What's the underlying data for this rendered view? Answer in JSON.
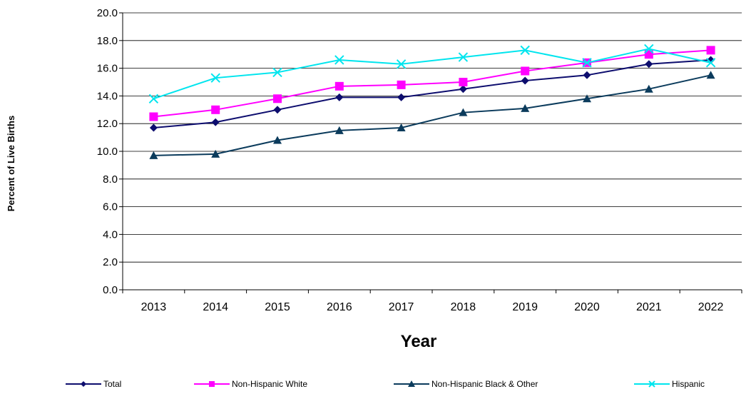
{
  "chart_data": {
    "type": "line",
    "title": "",
    "xlabel": "Year",
    "ylabel": "Percent of Live Births",
    "ylim": [
      0,
      20
    ],
    "y_ticks": [
      "0.0",
      "2.0",
      "4.0",
      "6.0",
      "8.0",
      "10.0",
      "12.0",
      "14.0",
      "16.0",
      "18.0",
      "20.0"
    ],
    "grid": "horizontal",
    "legend_position": "bottom",
    "categories": [
      "2013",
      "2014",
      "2015",
      "2016",
      "2017",
      "2018",
      "2019",
      "2020",
      "2021",
      "2022"
    ],
    "series": [
      {
        "name": "Total",
        "color": "#0d0d6e",
        "marker": "diamond",
        "values": [
          11.7,
          12.1,
          13.0,
          13.9,
          13.9,
          14.5,
          15.1,
          15.5,
          16.3,
          16.6
        ]
      },
      {
        "name": "Non-Hispanic White",
        "color": "#ff00ff",
        "marker": "square",
        "values": [
          12.5,
          13.0,
          13.8,
          14.7,
          14.8,
          15.0,
          15.8,
          16.4,
          17.0,
          17.3
        ]
      },
      {
        "name": "Non-Hispanic Black & Other",
        "color": "#0b3b5c",
        "marker": "triangle",
        "values": [
          9.7,
          9.8,
          10.8,
          11.5,
          11.7,
          12.8,
          13.1,
          13.8,
          14.5,
          15.5
        ]
      },
      {
        "name": "Hispanic",
        "color": "#00e5ee",
        "marker": "x",
        "values": [
          13.8,
          15.3,
          15.7,
          16.6,
          16.3,
          16.8,
          17.3,
          16.4,
          17.4,
          16.4
        ]
      }
    ]
  }
}
